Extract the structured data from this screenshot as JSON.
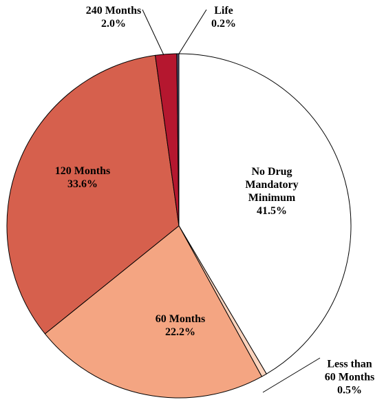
{
  "chart_data": {
    "type": "pie",
    "categories": [
      "No Drug Mandatory Minimum",
      "Less than 60 Months",
      "60 Months",
      "120 Months",
      "240 Months",
      "Life"
    ],
    "values": [
      41.5,
      0.5,
      22.2,
      33.6,
      2.0,
      0.2
    ],
    "value_labels": [
      "41.5%",
      "0.5%",
      "22.2%",
      "33.6%",
      "2.0%",
      "0.2%"
    ],
    "colors": [
      "#ffffff",
      "#fbd3bd",
      "#f4a582",
      "#d6604d",
      "#b5172f",
      "#4d4d6b"
    ]
  }
}
